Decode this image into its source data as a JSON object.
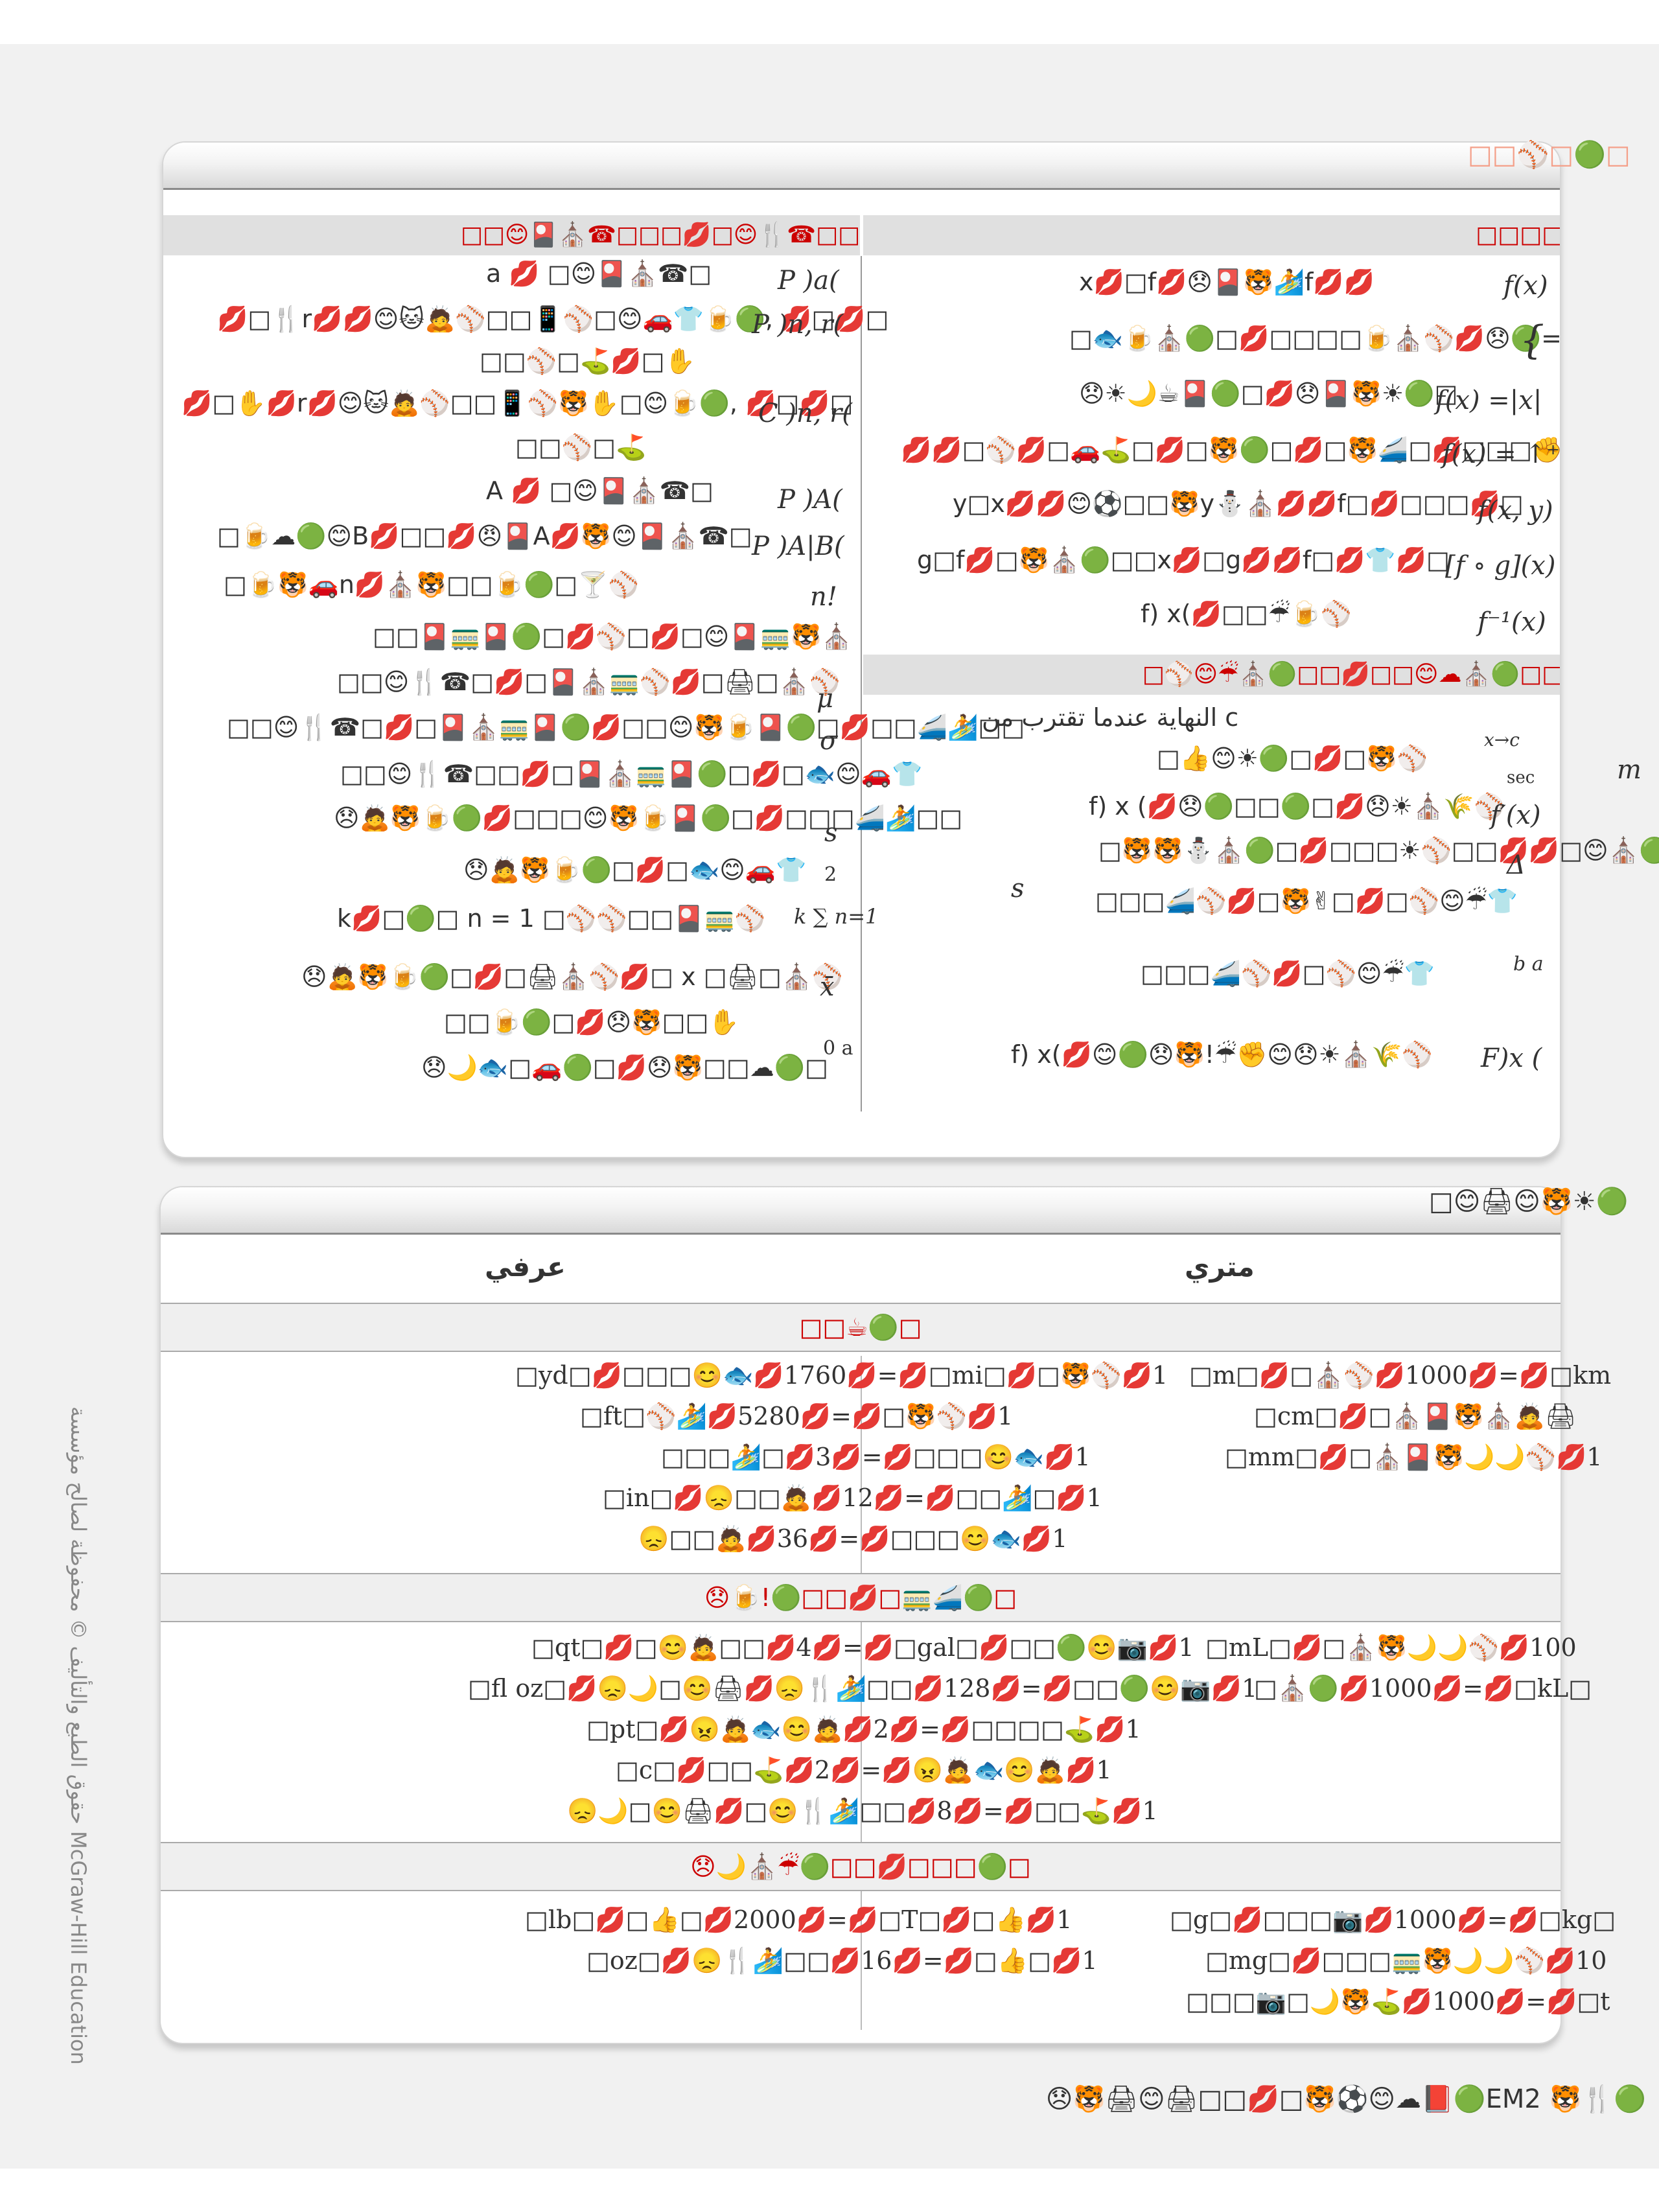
{
  "card1": {
    "header_title": "□□⚾□🟢□",
    "left_column": {
      "sub_header": "□□😊🎴⛪☎□□□💋□😊🍴☎□□",
      "rows": [
        {
          "symbol": "P )a(",
          "text": "a 💋 □😊🎴⛪☎□"
        },
        {
          "symbol": "P )n, r(",
          "text": "💋□🍴r💋💋😊🐱🙇⚾□□📱⚾□😊🚗👕🍺🟢, 💋□💋□"
        },
        {
          "symbol": "",
          "text": "□□⚾□⛳💋□✋"
        },
        {
          "symbol": "C )n, r(",
          "text": "💋□✋💋r💋😊🐱🙇⚾□□📱⚾🐯✋□😊🍺🟢, 💋□💋□"
        },
        {
          "symbol": "",
          "text": "□□⚾□⛳"
        },
        {
          "symbol": "P )A(",
          "text": "A 💋 □😊🎴⛪☎□"
        },
        {
          "symbol": "P )A|B(",
          "text": "□🍺☁🟢😊B💋□□💋😠🎴A💋🐯😊🎴⛪☎□"
        },
        {
          "symbol": "n!",
          "text": "□🍺🐯🚗n💋⛪🐯□□🍺🟢□🍸⚾"
        },
        {
          "symbol": "",
          "text": "□□🎴🚃🎴🟢□💋⚾□💋□😊🎴🚃🐯⛪"
        },
        {
          "symbol": "μ",
          "text": "□□😊🍴☎□💋□🎴⛪🚃⚾💋□🖨□⛪⚾"
        },
        {
          "symbol": "σ",
          "text": "□□😊🍴☎□💋□🎴⛪🚃🎴🟢💋□□😊🐯🍺🎴🟢□💋□□🚄🏄□□"
        },
        {
          "symbol": "",
          "text": "□□😊🍴☎□□💋□🎴⛪🚃🎴🟢□💋□🐟😊🚗👕"
        },
        {
          "symbol": "s",
          "text": "😞🙇🐯🍺🟢💋□□□😊🐯🍺🎴🟢□💋□□□🚄🏄□□"
        },
        {
          "symbol": "2",
          "text": "😞🙇🐯🍺🟢□💋□🐟😊🚗👕"
        },
        {
          "symbol": "k ∑ n=1",
          "text": "k💋□🟢□ n = 1 □⚾⚾□□🎴🚃⚾"
        },
        {
          "symbol": "x̄",
          "text": "😞🙇🐯🍺🟢□💋□🖨⛪⚾💋□ x □🖨□⛪⚾"
        },
        {
          "symbol": "",
          "text": "□□🍺🟢□💋😞🐯□□✋"
        },
        {
          "symbol": "0 a",
          "text": "😞🌙🐟□🚗🟢□💋😞🐯□□☁🟢□"
        }
      ]
    },
    "right_column": {
      "sub_header": "□□□□🟢□",
      "rows": [
        {
          "symbol": "f(x)",
          "text": "x💋□f💋😞🎴🐯🏄f💋💋"
        },
        {
          "symbol": "{",
          "text": "□🐟🍺⛪🟢□💋□□□□🍺⛪⚾💋😞🟢="
        },
        {
          "symbol": "f(x) =|x|",
          "text": "😞☀🌙☕🎴🟢□💋😞🎴🐯☀🟢□"
        },
        {
          "symbol": "f(x) = ↑⁺",
          "text": "💋💋□⚾💋□🚗⛳□💋□🐯🟢□💋□🐯🚄□💋□□□✊"
        },
        {
          "symbol": "f(x, y)",
          "text": "y□x💋💋😊⚽□□🐯y⛄⛪💋💋f□💋□□□💋□"
        },
        {
          "symbol": "[f ∘ g](x)",
          "text": "g□f💋□🐯⛪🟢□□x💋□g💋💋f□💋👕💋□"
        },
        {
          "symbol": "f⁻¹(x)",
          "text": "f) x(💋□□☔🍺⚾"
        }
      ],
      "sub_header2": "□⚾😊☔⛪🟢□□💋□□😊☁⛪🟢□□💋□",
      "rows2": [
        {
          "symbol": "x→c",
          "text": "النهاية عندما تقترب  من  c"
        },
        {
          "symbol": "sec",
          "text": "□👍😊☀🟢□💋□🐯⚾"
        },
        {
          "symbol": "f′(x)",
          "text": "f) x (💋😞🟢□□🟢□💋😞☀⛪🌾⚾"
        },
        {
          "symbol": "Δ",
          "text": "□🐯🐯⛄⛪🟢□💋□□□☀⚾□□💋💋□😊⛪🟢□"
        },
        {
          "symbol": "s",
          "text": "□□□🚄⚾💋□🐯✌□💋□⚾😊☔👕"
        },
        {
          "symbol": "b a",
          "text": "□□□🚄⚾💋□⚾😊☔👕"
        },
        {
          "symbol": "F)x (",
          "text": "f) x(💋😊🟢😞🐯!☔✊😊😞☀⛪🌾⚾"
        }
      ]
    },
    "margin_label": "m"
  },
  "card2": {
    "header_title": "□😊🖨😊🐯☀🟢",
    "col_metric": "متري",
    "col_customary": "عرفي",
    "sections": [
      {
        "band": "□□☕🟢□",
        "rows": [
          {
            "customary": "□yd□💋□□□😊🐟💋1760💋=💋□mi□💋□🐯⚾💋1",
            "metric": "□m□💋□⛪⚾💋1000💋=💋□km"
          },
          {
            "customary": "□ft□⚾🏄💋5280💋=💋□🐯⚾💋1",
            "metric": "□cm□💋□⛪🎴🐯⛪🙇🖨"
          },
          {
            "customary": "□□□🏄□💋3💋=💋□□□😊🐟💋1",
            "metric": "□mm□💋□⛪🎴🐯🌙🌙⚾💋1"
          },
          {
            "customary": "□in□💋😞□□🙇💋12💋=💋□□🏄□💋1",
            "metric": ""
          },
          {
            "customary": "😞□□🙇💋36💋=💋□□□😊🐟💋1",
            "metric": ""
          }
        ]
      },
      {
        "band": "😞🍺!🟢□□💋□🚃🚄🟢□",
        "rows": [
          {
            "customary": "□qt□💋□😊🙇□□💋4💋=💋□gal□💋□□🟢😊📷💋1",
            "metric": "□mL□💋□⛪🐯🌙🌙⚾💋100"
          },
          {
            "customary": "□fl oz□💋😞🌙□😊🖨💋😞🍴🏄□□💋128💋=💋□□🟢😊📷💋1",
            "metric": "□⛪🟢💋1000💋=💋□kL□"
          },
          {
            "customary": "□pt□💋😠🙇🐟😊🙇💋2💋=💋□□□□⛳💋1",
            "metric": ""
          },
          {
            "customary": "□c□💋□□⛳💋2💋=💋😠🙇🐟😊🙇💋1",
            "metric": ""
          },
          {
            "customary": "😞🌙□😊🖨💋□😊🍴🏄□□💋8💋=💋□□⛳💋1",
            "metric": ""
          }
        ]
      },
      {
        "band": "😞🌙⛪☔🟢□□💋□□□🟢□",
        "rows": [
          {
            "customary": "□lb□💋□👍□💋2000💋=💋□T□💋□👍💋1",
            "metric": "□g□💋□□□📷💋1000💋=💋□kg□"
          },
          {
            "customary": "□oz□💋😞🍴🏄□□💋16💋=💋□👍□💋1",
            "metric": "□mg□💋□□□🚃🐯🌙🌙⚾💋10"
          },
          {
            "customary": "",
            "metric": "□□□📷□🌙🐯⛳💋1000💋=💋□t"
          }
        ]
      }
    ]
  },
  "side_text": "حقوق الطبع والتأليف © محفوظة لصالح مؤسسة McGraw-Hill Education",
  "footer": "😞🐯🖨😊🖨□□💋□🐯⚽😊☁📕🟢EM2 🐯🍴🟢"
}
